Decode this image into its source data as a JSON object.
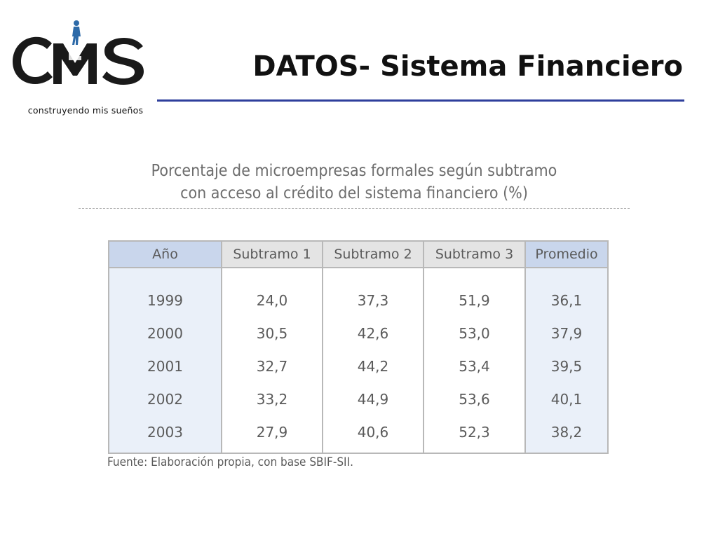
{
  "logo": {
    "letters": "CMS",
    "tagline": "construyendo mis sueños"
  },
  "slide": {
    "title": "DATOS- Sistema Financiero"
  },
  "table": {
    "title_line1": "Porcentaje de microempresas formales según subtramo",
    "title_line2": "con acceso al crédito del sistema financiero (%)",
    "columns": [
      "Año",
      "Subtramo 1",
      "Subtramo 2",
      "Subtramo 3",
      "Promedio"
    ],
    "rows": [
      [
        "1999",
        "24,0",
        "37,3",
        "51,9",
        "36,1"
      ],
      [
        "2000",
        "30,5",
        "42,6",
        "53,0",
        "37,9"
      ],
      [
        "2001",
        "32,7",
        "44,2",
        "53,4",
        "39,5"
      ],
      [
        "2002",
        "33,2",
        "44,9",
        "53,6",
        "40,1"
      ],
      [
        "2003",
        "27,9",
        "40,6",
        "52,3",
        "38,2"
      ]
    ],
    "source": "Fuente: Elaboración propia, con base SBIF-SII."
  },
  "colors": {
    "accent_rule": "#2e3f9c",
    "logo_letters": "#1a1a1a",
    "logo_figure": "#2d6aa8",
    "header_highlight": "#c9d6ec"
  }
}
